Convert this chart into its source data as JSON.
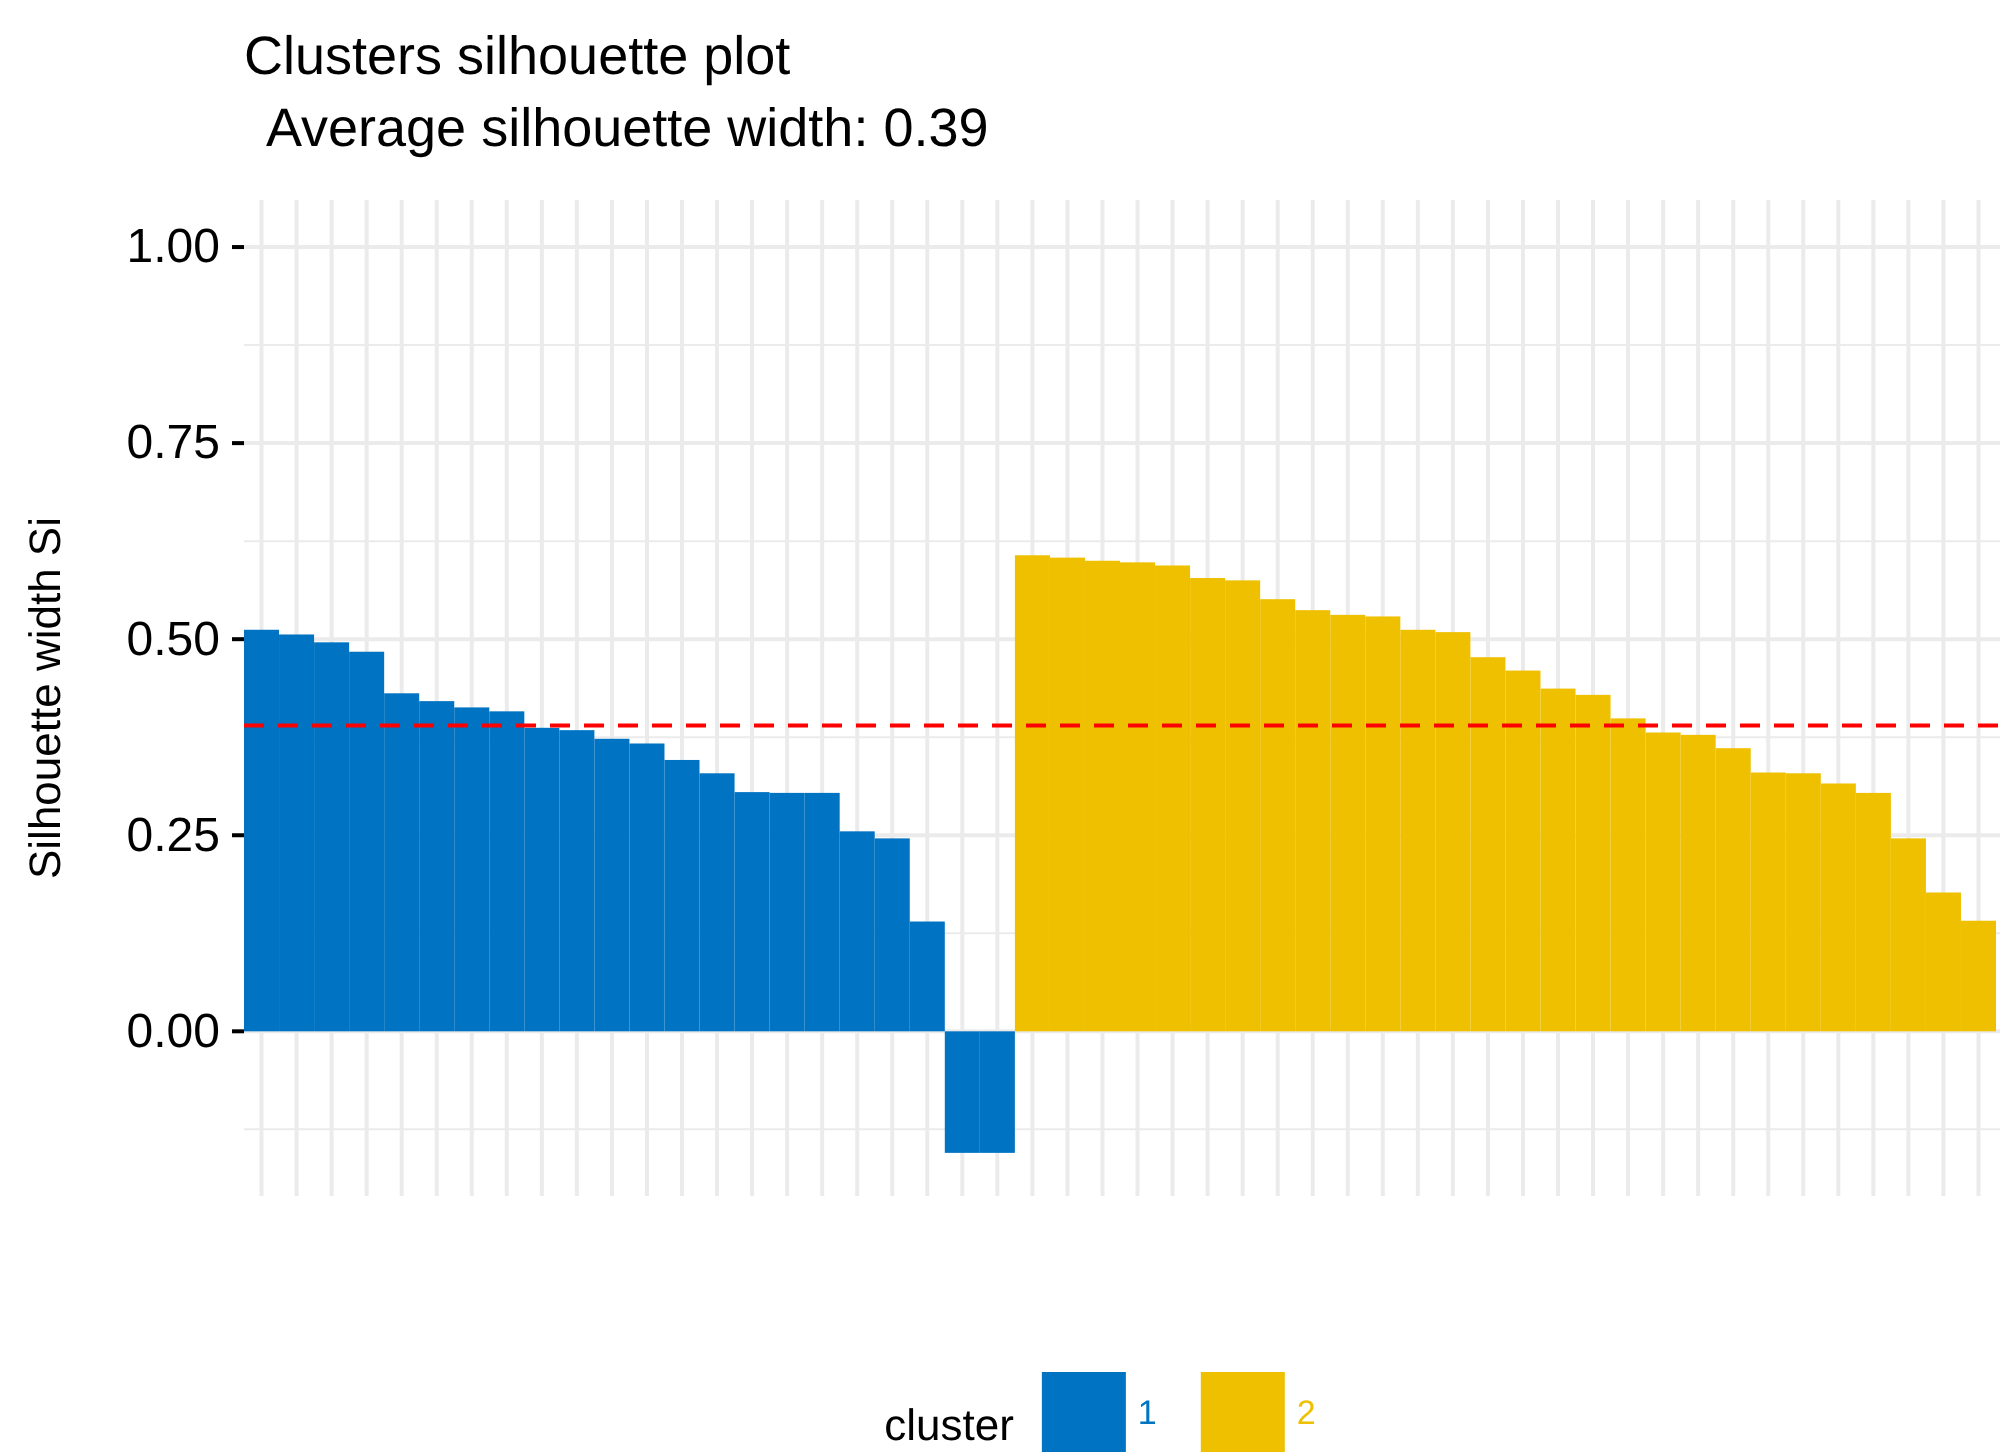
{
  "chart_data": {
    "type": "bar",
    "title": "Clusters silhouette plot",
    "subtitle": "Average silhouette width: 0.39",
    "ylabel": "Silhouette width Si",
    "legend_title": "cluster",
    "categories": [
      null,
      null,
      null,
      null,
      null,
      null,
      null,
      null,
      null,
      null,
      null,
      null,
      null,
      null,
      null,
      null,
      null,
      null,
      null,
      null,
      null,
      null,
      null,
      null,
      null,
      null,
      null,
      null,
      null,
      null,
      null,
      null,
      null,
      null,
      null,
      null,
      null,
      null,
      null,
      null,
      null,
      null,
      null,
      null,
      null,
      null,
      null,
      null,
      null,
      null
    ],
    "series": [
      {
        "name": "1",
        "color": "#0073c2",
        "values": [
          0.512,
          0.506,
          0.496,
          0.484,
          0.431,
          0.421,
          0.413,
          0.408,
          0.387,
          0.384,
          0.373,
          0.367,
          0.346,
          0.329,
          0.305,
          0.304,
          0.304,
          0.255,
          0.246,
          0.14,
          -0.155,
          -0.155,
          null,
          null,
          null,
          null,
          null,
          null,
          null,
          null,
          null,
          null,
          null,
          null,
          null,
          null,
          null,
          null,
          null,
          null,
          null,
          null,
          null,
          null,
          null,
          null,
          null,
          null,
          null,
          null
        ]
      },
      {
        "name": "2",
        "color": "#efc000",
        "values": [
          null,
          null,
          null,
          null,
          null,
          null,
          null,
          null,
          null,
          null,
          null,
          null,
          null,
          null,
          null,
          null,
          null,
          null,
          null,
          null,
          null,
          null,
          0.607,
          0.604,
          0.6,
          0.598,
          0.594,
          0.578,
          0.575,
          0.551,
          0.537,
          0.531,
          0.529,
          0.512,
          0.509,
          0.477,
          0.46,
          0.437,
          0.429,
          0.399,
          0.381,
          0.378,
          0.361,
          0.33,
          0.329,
          0.316,
          0.304,
          0.246,
          0.177,
          0.141
        ]
      }
    ],
    "ylim": [
      -0.21,
      1.06
    ],
    "yticks": [
      {
        "value": 0,
        "label": "0.00"
      },
      {
        "value": 0.25,
        "label": "0.25"
      },
      {
        "value": 0.5,
        "label": "0.50"
      },
      {
        "value": 0.75,
        "label": "0.75"
      },
      {
        "value": 1,
        "label": "1.00"
      }
    ],
    "ref_lines": [
      {
        "axis": "y",
        "value": 0.39,
        "color": "#ff0000",
        "line_style": "dashed"
      }
    ],
    "grid": true,
    "legend": "bottom",
    "tick_labels": "y"
  }
}
